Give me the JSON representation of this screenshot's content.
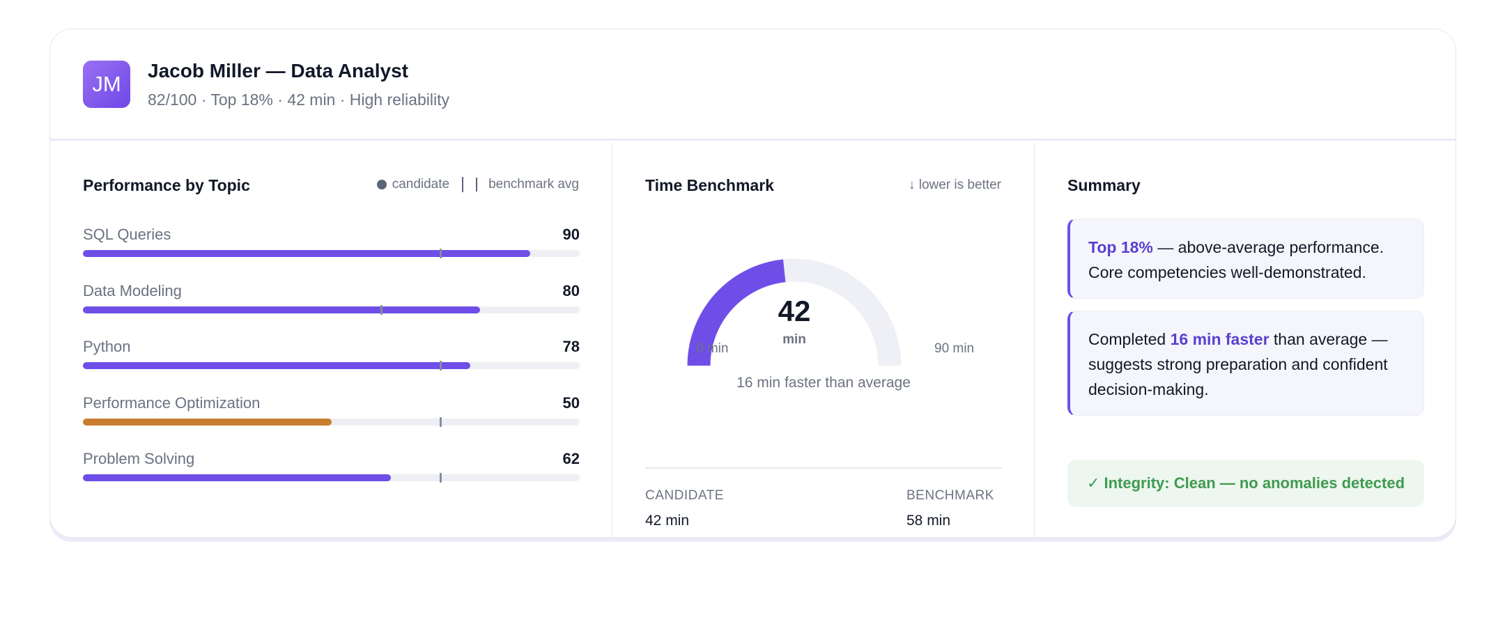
{
  "header": {
    "avatar_initials": "JM",
    "title": "Jacob Miller — Data Analyst",
    "subtitle": "82/100 · Top 18% · 42 min · High reliability"
  },
  "topics": {
    "title": "Performance by Topic",
    "legend": {
      "candidate": "candidate",
      "benchmark": "benchmark avg"
    },
    "max": 100,
    "items": [
      {
        "label": "SQL Queries",
        "value": 90,
        "benchmark": 72,
        "color": "#6f4ee8"
      },
      {
        "label": "Data Modeling",
        "value": 80,
        "benchmark": 60,
        "color": "#6f4ee8"
      },
      {
        "label": "Python",
        "value": 78,
        "benchmark": 72,
        "color": "#6f4ee8"
      },
      {
        "label": "Performance Optimization",
        "value": 50,
        "benchmark": 72,
        "color": "#c97d2e"
      },
      {
        "label": "Problem Solving",
        "value": 62,
        "benchmark": 72,
        "color": "#6f4ee8"
      }
    ]
  },
  "time": {
    "title": "Time Benchmark",
    "hint": "↓ lower is better",
    "value": "42",
    "unit": "min",
    "value_num": 42,
    "min_label": "0 min",
    "max_label": "90 min",
    "max_num": 90,
    "caption": "16 min faster than average",
    "candidate_label": "CANDIDATE",
    "candidate_value": "42 min",
    "benchmark_label": "BENCHMARK",
    "benchmark_value": "58 min"
  },
  "summary": {
    "title": "Summary",
    "box1": {
      "highlight": "Top 18%",
      "text": " — above-average performance. Core competencies well-demonstrated."
    },
    "box2": {
      "prefix": "Completed ",
      "highlight": "16 min faster",
      "text": " than average — suggests strong preparation and confident decision-making."
    },
    "integrity": "✓ Integrity: Clean — no anomalies detected"
  }
}
